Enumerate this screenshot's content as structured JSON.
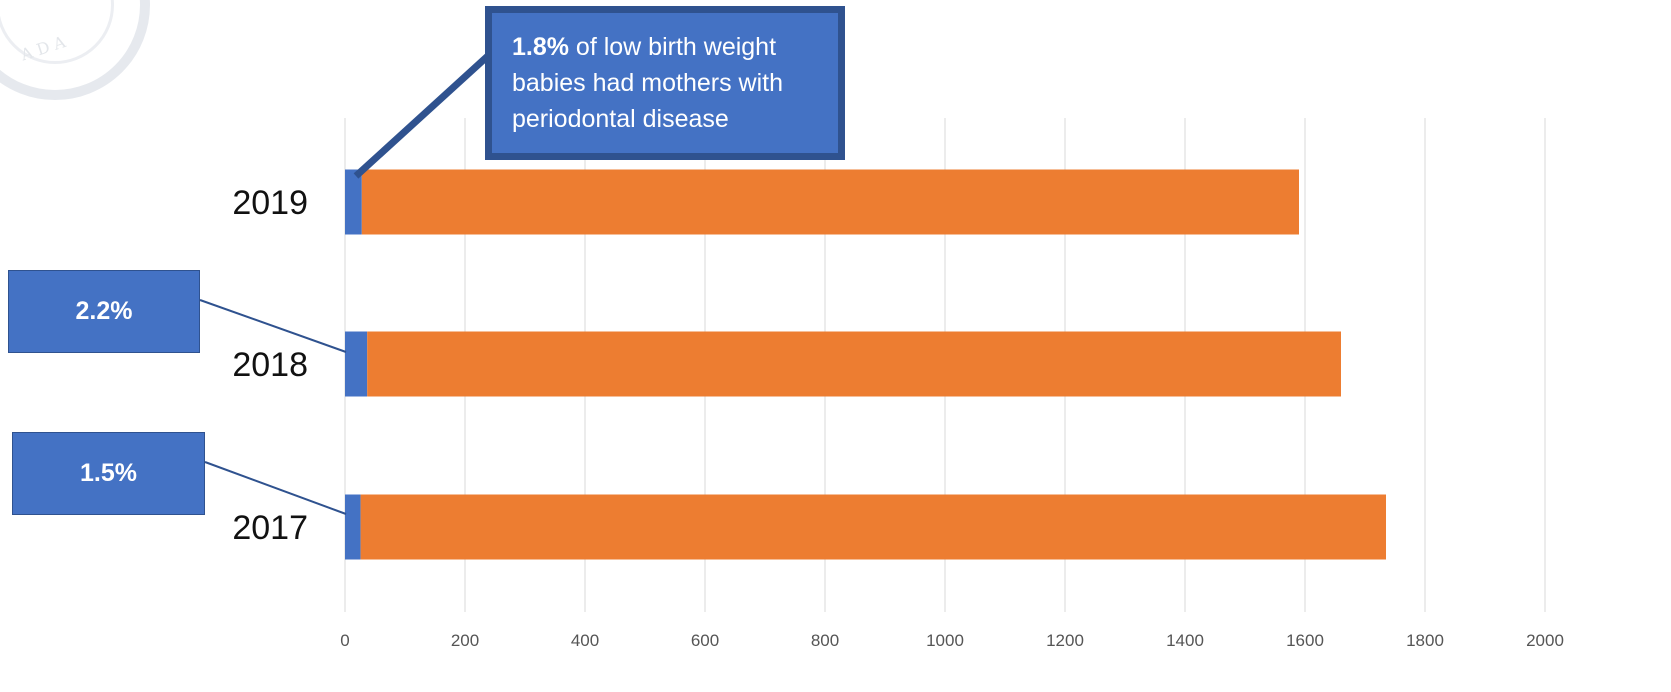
{
  "chart_data": {
    "type": "bar",
    "orientation": "horizontal",
    "stacked": true,
    "categories": [
      "2019",
      "2018",
      "2017"
    ],
    "series": [
      {
        "values": [
          28,
          37,
          26
        ],
        "color": "#4472c4"
      },
      {
        "values": [
          1562,
          1623,
          1709
        ],
        "color": "#ed7d31"
      }
    ],
    "xlim": [
      0,
      2000
    ],
    "x_ticks": [
      "0",
      "200",
      "400",
      "600",
      "800",
      "1000",
      "1200",
      "1400",
      "1600",
      "1800",
      "2000"
    ],
    "grid": true,
    "legend": "none",
    "annotations": [
      {
        "category": "2019",
        "bold": "1.8%",
        "text": " of low birth weight babies had mothers with periodontal disease"
      },
      {
        "category": "2018",
        "text": "2.2%"
      },
      {
        "category": "2017",
        "text": "1.5%"
      }
    ]
  },
  "logo": {
    "text": "ADA"
  }
}
